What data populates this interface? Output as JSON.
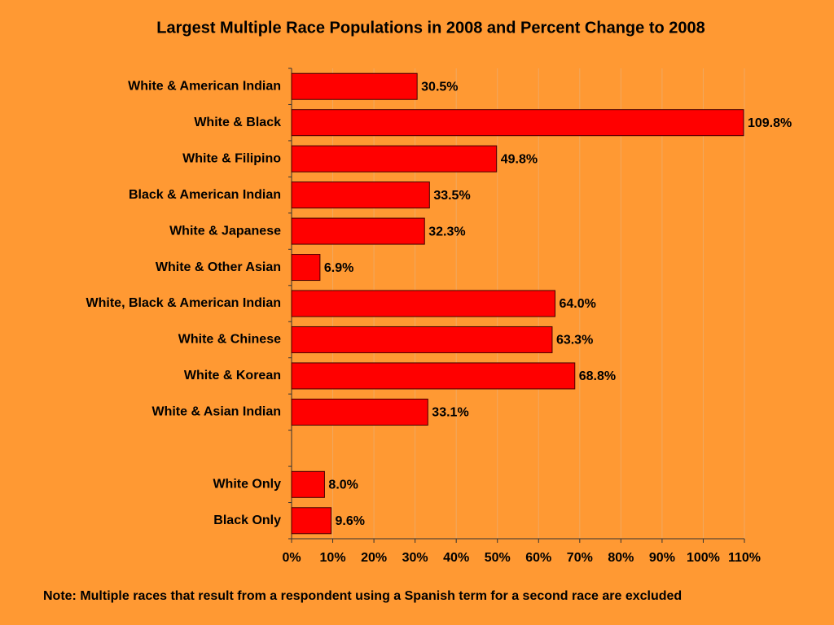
{
  "chart_data": {
    "type": "bar",
    "orientation": "horizontal",
    "title": "Largest Multiple Race Populations in 2008 and Percent Change to 2008",
    "note": "Note: Multiple races that result from a respondent using a Spanish term for a second race are excluded",
    "categories": [
      "White & American Indian",
      "White & Black",
      "White & Filipino",
      "Black & American Indian",
      "White & Japanese",
      "White & Other Asian",
      "White, Black & American Indian",
      "White & Chinese",
      "White & Korean",
      "White & Asian Indian",
      null,
      "White Only",
      "Black Only"
    ],
    "values": [
      30.5,
      109.8,
      49.8,
      33.5,
      32.3,
      6.9,
      64.0,
      63.3,
      68.8,
      33.1,
      null,
      8.0,
      9.6
    ],
    "value_labels": [
      "30.5%",
      "109.8%",
      "49.8%",
      "33.5%",
      "32.3%",
      "6.9%",
      "64.0%",
      "63.3%",
      "68.8%",
      "33.1%",
      null,
      "8.0%",
      "9.6%"
    ],
    "color": "#ff0000",
    "xlim": [
      0,
      110
    ],
    "xticks": [
      {
        "value": 0,
        "label": "0%"
      },
      {
        "value": 10,
        "label": "10%"
      },
      {
        "value": 20,
        "label": "20%"
      },
      {
        "value": 30,
        "label": "30%"
      },
      {
        "value": 40,
        "label": "40%"
      },
      {
        "value": 50,
        "label": "50%"
      },
      {
        "value": 60,
        "label": "60%"
      },
      {
        "value": 70,
        "label": "70%"
      },
      {
        "value": 80,
        "label": "80%"
      },
      {
        "value": 90,
        "label": "90%"
      },
      {
        "value": 100,
        "label": "100%"
      },
      {
        "value": 110,
        "label": "110%"
      }
    ],
    "grid": true
  }
}
